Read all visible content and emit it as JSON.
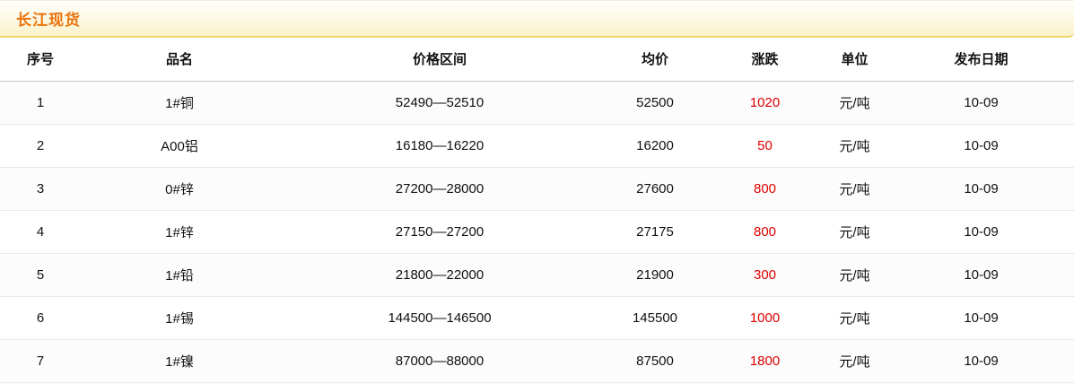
{
  "section": {
    "title": "长江现货"
  },
  "table": {
    "columns": [
      "序号",
      "品名",
      "价格区间",
      "均价",
      "涨跌",
      "单位",
      "发布日期"
    ],
    "rows": [
      {
        "index": "1",
        "name": "1#铜",
        "range": "52490—52510",
        "avg": "52500",
        "change": "1020",
        "unit": "元/吨",
        "date": "10-09"
      },
      {
        "index": "2",
        "name": "A00铝",
        "range": "16180—16220",
        "avg": "16200",
        "change": "50",
        "unit": "元/吨",
        "date": "10-09"
      },
      {
        "index": "3",
        "name": "0#锌",
        "range": "27200—28000",
        "avg": "27600",
        "change": "800",
        "unit": "元/吨",
        "date": "10-09"
      },
      {
        "index": "4",
        "name": "1#锌",
        "range": "27150—27200",
        "avg": "27175",
        "change": "800",
        "unit": "元/吨",
        "date": "10-09"
      },
      {
        "index": "5",
        "name": "1#铅",
        "range": "21800—22000",
        "avg": "21900",
        "change": "300",
        "unit": "元/吨",
        "date": "10-09"
      },
      {
        "index": "6",
        "name": "1#锡",
        "range": "144500—146500",
        "avg": "145500",
        "change": "1000",
        "unit": "元/吨",
        "date": "10-09"
      },
      {
        "index": "7",
        "name": "1#镍",
        "range": "87000—88000",
        "avg": "87500",
        "change": "1800",
        "unit": "元/吨",
        "date": "10-09"
      }
    ]
  },
  "colors": {
    "title_text": "#e8730c",
    "title_border": "#e9d36c",
    "change_text": "#e00000"
  }
}
